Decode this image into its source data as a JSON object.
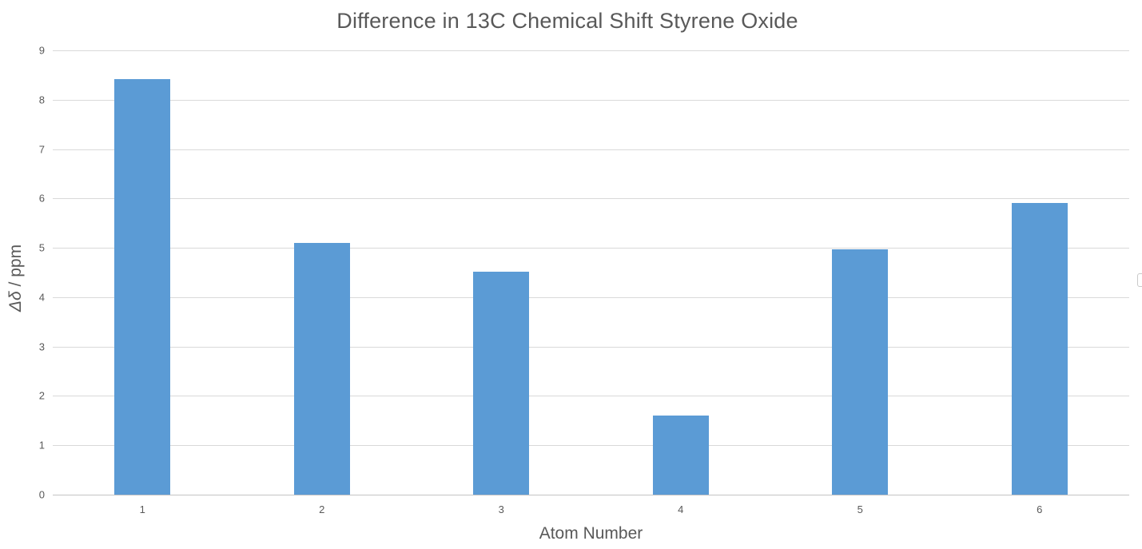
{
  "chart_data": {
    "type": "bar",
    "title": "Difference in 13C Chemical Shift Styrene Oxide",
    "categories": [
      "1",
      "2",
      "3",
      "4",
      "5",
      "6"
    ],
    "values": [
      8.42,
      5.1,
      4.52,
      1.6,
      4.97,
      5.91
    ],
    "xlabel": "Atom Number",
    "ylabel": {
      "math": "Δδ",
      "rest": " / ppm"
    },
    "ylabel_text": "Δδ / ppm",
    "ylim": [
      0,
      9
    ],
    "yticks": [
      0,
      1,
      2,
      3,
      4,
      5,
      6,
      7,
      8,
      9
    ],
    "grid": true,
    "legend": "none",
    "colors": {
      "bar": "#5B9BD5",
      "text": "#595959",
      "gridline": "#D9D9D9",
      "axis_line": "#C3C3C3",
      "background": "#FFFFFF"
    }
  }
}
